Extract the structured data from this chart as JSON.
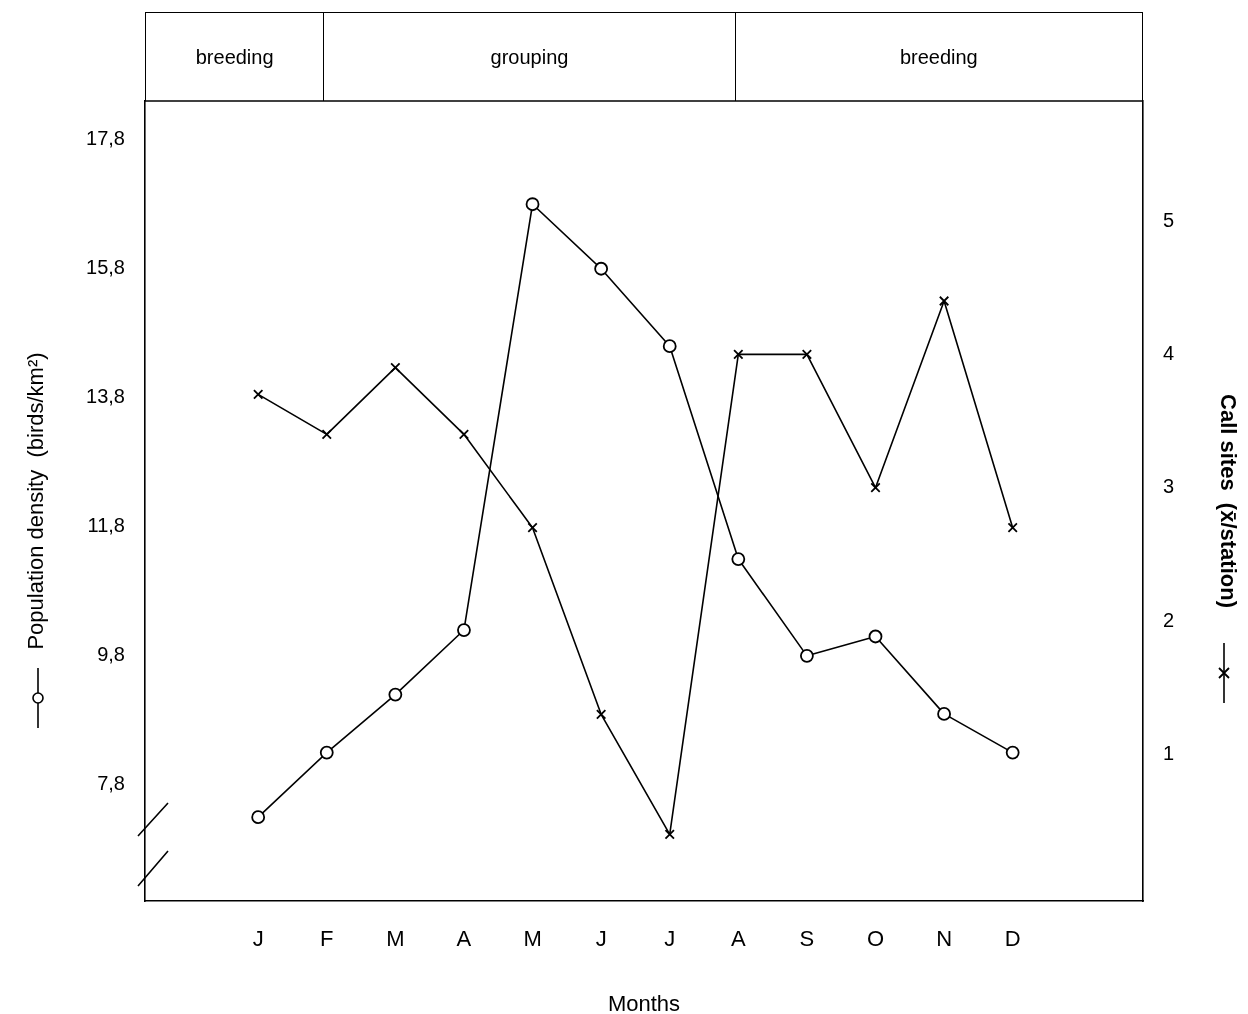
{
  "chart_data": {
    "type": "line",
    "xlabel": "Months",
    "ylabel": "Population density  (birds/km²)",
    "y2label": "Call sites  (x̄/station)",
    "categories": [
      "J",
      "F",
      "M",
      "A",
      "M",
      "J",
      "J",
      "A",
      "S",
      "O",
      "N",
      "D"
    ],
    "series": [
      {
        "color": "#000000",
        "marker": "circle",
        "values": [
          7.3,
          8.3,
          9.2,
          10.2,
          16.8,
          15.8,
          14.6,
          11.3,
          9.8,
          10.1,
          8.9,
          8.3
        ]
      },
      {
        "color": "#000000",
        "marker": "cross",
        "axis": "y2",
        "values": [
          3.7,
          3.4,
          3.9,
          3.4,
          2.7,
          1.3,
          0.4,
          4.0,
          4.0,
          3.0,
          4.4,
          2.7
        ]
      }
    ],
    "ylim": [
      6.0,
      18.4
    ],
    "yticks": [
      {
        "value": 7.8,
        "label": "7,8"
      },
      {
        "value": 9.8,
        "label": "9,8"
      },
      {
        "value": 11.8,
        "label": "11,8"
      },
      {
        "value": 13.8,
        "label": "13,8"
      },
      {
        "value": 15.8,
        "label": "15,8"
      },
      {
        "value": 17.8,
        "label": "17,8"
      }
    ],
    "y2lim": [
      -0.1,
      5.9
    ],
    "y2ticks": [
      1,
      2,
      3,
      4,
      5
    ],
    "annotations": [
      "breeding",
      "grouping",
      "breeding"
    ],
    "grid": false,
    "legend": false
  }
}
